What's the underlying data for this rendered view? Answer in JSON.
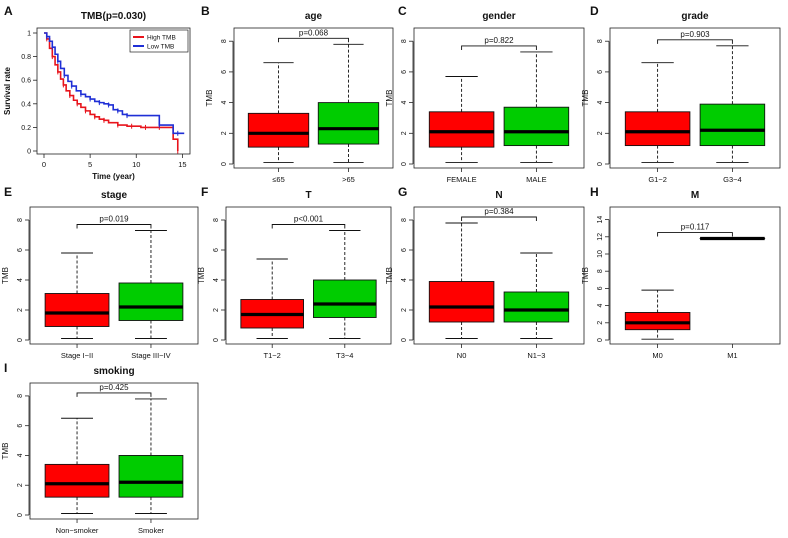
{
  "figure": {
    "background": "#ffffff",
    "high_color": "#e8141c",
    "low_color": "#1f2fd6",
    "box_red": "#ff0000",
    "box_green": "#00cc00"
  },
  "chart_data": [
    {
      "panel": "A",
      "type": "line",
      "title": "TMB(p=0.030)",
      "xlabel": "Time (year)",
      "ylabel": "Survival rate",
      "xlim": [
        0,
        15.5
      ],
      "ylim": [
        0,
        1.0
      ],
      "xticks": [
        0,
        5,
        10,
        15
      ],
      "yticks": [
        0.0,
        0.2,
        0.4,
        0.6,
        0.8,
        1.0
      ],
      "legend_position": "top-right",
      "series": [
        {
          "name": "High TMB",
          "color": "#e8141c",
          "x": [
            0,
            0.3,
            0.6,
            0.9,
            1.2,
            1.5,
            1.8,
            2.1,
            2.4,
            2.8,
            3.2,
            3.6,
            4.0,
            4.5,
            5.0,
            5.5,
            6.0,
            6.5,
            7.0,
            8.0,
            9.0,
            9.5,
            10.5,
            11.0,
            11.5,
            12.5,
            14.0,
            14.5
          ],
          "y": [
            1.0,
            0.95,
            0.87,
            0.8,
            0.73,
            0.67,
            0.61,
            0.56,
            0.51,
            0.47,
            0.43,
            0.4,
            0.37,
            0.34,
            0.31,
            0.29,
            0.27,
            0.26,
            0.24,
            0.22,
            0.21,
            0.21,
            0.2,
            0.2,
            0.2,
            0.2,
            0.1,
            0.0
          ]
        },
        {
          "name": "Low TMB",
          "color": "#1f2fd6",
          "x": [
            0,
            0.3,
            0.6,
            0.9,
            1.2,
            1.5,
            1.8,
            2.2,
            2.6,
            3.0,
            3.5,
            4.0,
            4.5,
            5.0,
            5.5,
            6.0,
            6.5,
            7.0,
            7.5,
            8.0,
            8.5,
            9.0,
            12.0,
            12.5,
            14.0,
            14.5,
            15.2
          ],
          "y": [
            1.0,
            0.97,
            0.93,
            0.88,
            0.82,
            0.76,
            0.7,
            0.64,
            0.59,
            0.55,
            0.51,
            0.48,
            0.46,
            0.44,
            0.42,
            0.41,
            0.4,
            0.39,
            0.35,
            0.34,
            0.31,
            0.3,
            0.3,
            0.22,
            0.15,
            0.15,
            0.15
          ]
        }
      ]
    },
    {
      "panel": "B",
      "type": "box",
      "title": "age",
      "ylabel": "TMB",
      "pvalue": "p=0.068",
      "yticks": [
        0,
        2,
        4,
        6,
        8
      ],
      "ylim": [
        0,
        8.6
      ],
      "categories": [
        "≤65",
        ">65"
      ],
      "boxes": [
        {
          "min": 0.1,
          "q1": 1.1,
          "median": 2.0,
          "q3": 3.3,
          "max": 6.6,
          "color": "#ff0000"
        },
        {
          "min": 0.1,
          "q1": 1.3,
          "median": 2.3,
          "q3": 4.0,
          "max": 7.8,
          "color": "#00cc00"
        }
      ]
    },
    {
      "panel": "C",
      "type": "box",
      "title": "gender",
      "ylabel": "TMB",
      "pvalue": "p=0.822",
      "yticks": [
        0,
        2,
        4,
        6,
        8
      ],
      "ylim": [
        0,
        8.6
      ],
      "categories": [
        "FEMALE",
        "MALE"
      ],
      "boxes": [
        {
          "min": 0.1,
          "q1": 1.1,
          "median": 2.1,
          "q3": 3.4,
          "max": 5.7,
          "color": "#ff0000"
        },
        {
          "min": 0.1,
          "q1": 1.2,
          "median": 2.1,
          "q3": 3.7,
          "max": 7.3,
          "color": "#00cc00"
        }
      ]
    },
    {
      "panel": "D",
      "type": "box",
      "title": "grade",
      "ylabel": "TMB",
      "pvalue": "p=0.903",
      "yticks": [
        0,
        2,
        4,
        6,
        8
      ],
      "ylim": [
        0,
        8.6
      ],
      "categories": [
        "G1−2",
        "G3−4"
      ],
      "boxes": [
        {
          "min": 0.1,
          "q1": 1.2,
          "median": 2.1,
          "q3": 3.4,
          "max": 6.6,
          "color": "#ff0000"
        },
        {
          "min": 0.1,
          "q1": 1.2,
          "median": 2.2,
          "q3": 3.9,
          "max": 7.7,
          "color": "#00cc00"
        }
      ]
    },
    {
      "panel": "E",
      "type": "box",
      "title": "stage",
      "ylabel": "TMB",
      "pvalue": "p=0.019",
      "yticks": [
        0,
        2,
        4,
        6,
        8
      ],
      "ylim": [
        0,
        8.6
      ],
      "categories": [
        "Stage I−II",
        "Stage III−IV"
      ],
      "boxes": [
        {
          "min": 0.1,
          "q1": 0.9,
          "median": 1.8,
          "q3": 3.1,
          "max": 5.8,
          "color": "#ff0000"
        },
        {
          "min": 0.1,
          "q1": 1.3,
          "median": 2.2,
          "q3": 3.8,
          "max": 7.3,
          "color": "#00cc00"
        }
      ]
    },
    {
      "panel": "F",
      "type": "box",
      "title": "T",
      "ylabel": "TMB",
      "pvalue": "p<0.001",
      "yticks": [
        0,
        2,
        4,
        6,
        8
      ],
      "ylim": [
        0,
        8.6
      ],
      "categories": [
        "T1−2",
        "T3−4"
      ],
      "boxes": [
        {
          "min": 0.1,
          "q1": 0.8,
          "median": 1.7,
          "q3": 2.7,
          "max": 5.4,
          "color": "#ff0000"
        },
        {
          "min": 0.1,
          "q1": 1.5,
          "median": 2.4,
          "q3": 4.0,
          "max": 7.3,
          "color": "#00cc00"
        }
      ]
    },
    {
      "panel": "G",
      "type": "box",
      "title": "N",
      "ylabel": "TMB",
      "pvalue": "p=0.384",
      "yticks": [
        0,
        2,
        4,
        6,
        8
      ],
      "ylim": [
        0,
        8.6
      ],
      "categories": [
        "N0",
        "N1−3"
      ],
      "boxes": [
        {
          "min": 0.1,
          "q1": 1.2,
          "median": 2.2,
          "q3": 3.9,
          "max": 7.8,
          "color": "#ff0000"
        },
        {
          "min": 0.1,
          "q1": 1.2,
          "median": 2.0,
          "q3": 3.2,
          "max": 5.8,
          "color": "#00cc00"
        }
      ]
    },
    {
      "panel": "H",
      "type": "box",
      "title": "M",
      "ylabel": "TMB",
      "pvalue": "p=0.117",
      "yticks": [
        0,
        2,
        4,
        6,
        8,
        10,
        12,
        14
      ],
      "ylim": [
        0,
        15.0
      ],
      "categories": [
        "M0",
        "M1"
      ],
      "boxes": [
        {
          "min": 0.1,
          "q1": 1.2,
          "median": 2.0,
          "q3": 3.2,
          "max": 5.8,
          "color": "#ff0000"
        },
        {
          "min": 11.8,
          "q1": 11.8,
          "median": 11.8,
          "q3": 11.8,
          "max": 11.8,
          "color": "#00cc00"
        }
      ]
    },
    {
      "panel": "I",
      "type": "box",
      "title": "smoking",
      "ylabel": "TMB",
      "pvalue": "p=0.425",
      "yticks": [
        0,
        2,
        4,
        6,
        8
      ],
      "ylim": [
        0,
        8.6
      ],
      "categories": [
        "Non−smoker",
        "Smoker"
      ],
      "boxes": [
        {
          "min": 0.1,
          "q1": 1.2,
          "median": 2.1,
          "q3": 3.4,
          "max": 6.5,
          "color": "#ff0000"
        },
        {
          "min": 0.1,
          "q1": 1.2,
          "median": 2.2,
          "q3": 4.0,
          "max": 7.8,
          "color": "#00cc00"
        }
      ]
    }
  ]
}
